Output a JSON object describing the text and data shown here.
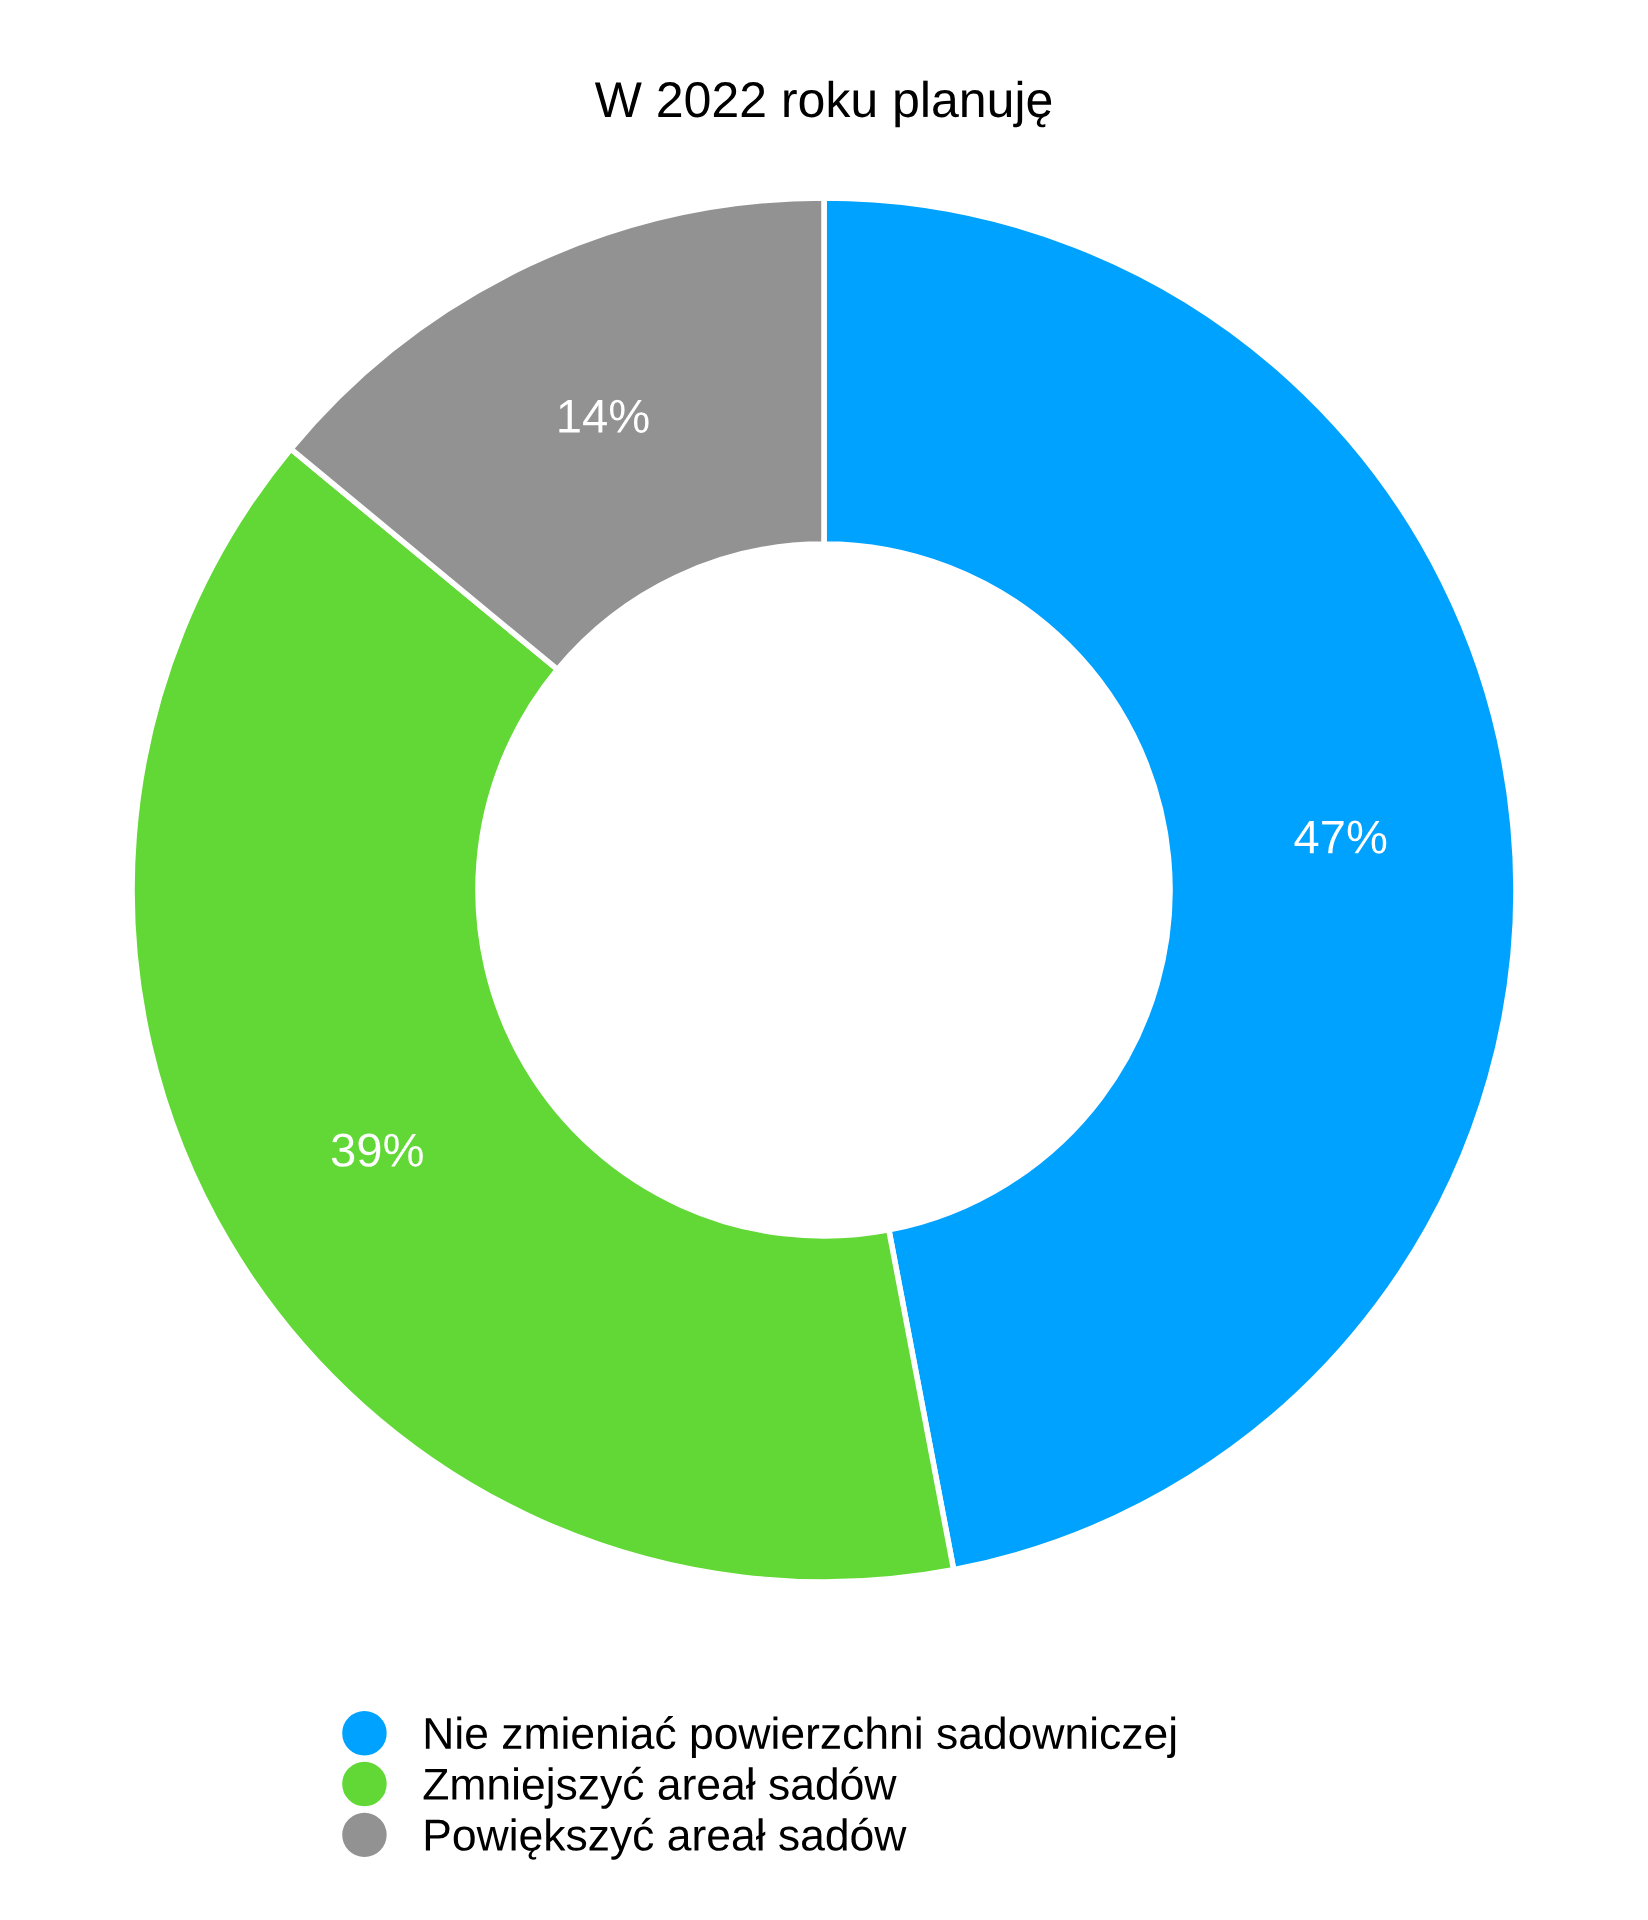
{
  "chart_data": {
    "type": "donut",
    "title": "W 2022 roku planuję",
    "categories": [
      "Nie zmieniać powierzchni sadowniczej",
      "Zmniejszyć areał sadów",
      "Powiększyć areał sadów"
    ],
    "values": [
      47,
      39,
      14
    ],
    "colors": [
      "#00a2ff",
      "#61d836",
      "#929292"
    ],
    "value_labels": [
      "47%",
      "39%",
      "14%"
    ],
    "legend": "bottom"
  }
}
